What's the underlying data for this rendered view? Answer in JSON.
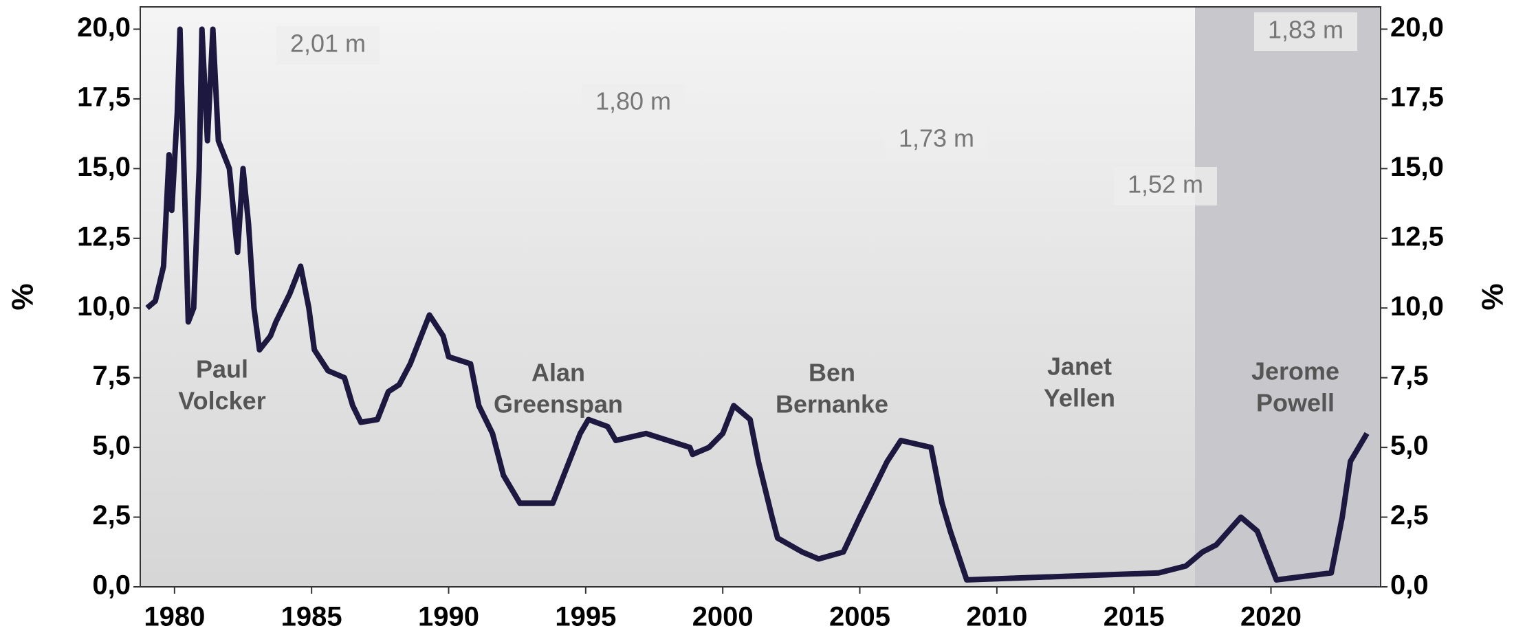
{
  "chart_data": {
    "type": "line",
    "ylabel": "%",
    "y2label": "%",
    "xlim": [
      1978.75,
      2024
    ],
    "ylim": [
      0,
      20.8
    ],
    "y2lim": [
      0,
      20.8
    ],
    "xticks": [
      1980,
      1985,
      1990,
      1995,
      2000,
      2005,
      2010,
      2015,
      2020
    ],
    "yticks": [
      {
        "value": 0,
        "label": "0,0"
      },
      {
        "value": 2.5,
        "label": "2,5"
      },
      {
        "value": 5,
        "label": "5,0"
      },
      {
        "value": 7.5,
        "label": "7,5"
      },
      {
        "value": 10,
        "label": "10,0"
      },
      {
        "value": 12.5,
        "label": "12,5"
      },
      {
        "value": 15,
        "label": "15,0"
      },
      {
        "value": 17.5,
        "label": "17,5"
      },
      {
        "value": 20,
        "label": "20,0"
      }
    ],
    "y2ticks": [
      {
        "value": 0,
        "label": "0,0"
      },
      {
        "value": 2.5,
        "label": "2,5"
      },
      {
        "value": 5,
        "label": "5,0"
      },
      {
        "value": 7.5,
        "label": "7,5"
      },
      {
        "value": 10,
        "label": "10,0"
      },
      {
        "value": 12.5,
        "label": "12,5"
      },
      {
        "value": 15,
        "label": "15,0"
      },
      {
        "value": 17.5,
        "label": "17,5"
      },
      {
        "value": 20,
        "label": "20,0"
      }
    ],
    "series": [
      {
        "color": "#1c1840",
        "x": [
          1979.0,
          1979.3,
          1979.6,
          1979.8,
          1979.9,
          1980.1,
          1980.2,
          1980.4,
          1980.5,
          1980.7,
          1980.9,
          1981.0,
          1981.2,
          1981.4,
          1981.6,
          1981.8,
          1982.0,
          1982.3,
          1982.5,
          1982.7,
          1982.9,
          1983.1,
          1983.5,
          1983.7,
          1984.2,
          1984.6,
          1984.9,
          1985.1,
          1985.6,
          1986.2,
          1986.5,
          1986.8,
          1987.4,
          1987.8,
          1988.2,
          1988.6,
          1989.0,
          1989.3,
          1989.8,
          1990.0,
          1990.8,
          1991.1,
          1991.6,
          1992.0,
          1992.6,
          1993.8,
          1994.4,
          1994.8,
          1995.1,
          1995.8,
          1996.1,
          1997.2,
          1998.8,
          1998.9,
          1999.5,
          2000.0,
          2000.4,
          2001.0,
          2001.3,
          2001.8,
          2002.0,
          2002.9,
          2003.5,
          2004.4,
          2005.0,
          2006.0,
          2006.5,
          2007.6,
          2008.0,
          2008.3,
          2008.9,
          2015.9,
          2016.9,
          2017.5,
          2018.0,
          2018.9,
          2019.5,
          2020.2,
          2022.2,
          2022.6,
          2022.9,
          2023.5
        ],
        "values": [
          10.0,
          10.25,
          11.5,
          15.5,
          13.5,
          17.0,
          20.0,
          13.0,
          9.5,
          10.0,
          15.0,
          20.0,
          16.0,
          20.0,
          16.0,
          15.5,
          15.0,
          12.0,
          15.0,
          13.0,
          10.0,
          8.5,
          9.0,
          9.5,
          10.5,
          11.5,
          10.0,
          8.5,
          7.75,
          7.5,
          6.5,
          5.9,
          6.0,
          7.0,
          7.25,
          8.0,
          9.0,
          9.75,
          9.0,
          8.25,
          8.0,
          6.5,
          5.5,
          4.0,
          3.0,
          3.0,
          4.5,
          5.5,
          6.0,
          5.75,
          5.25,
          5.5,
          5.0,
          4.75,
          5.0,
          5.5,
          6.5,
          6.0,
          4.5,
          2.5,
          1.75,
          1.25,
          1.0,
          1.25,
          2.5,
          4.5,
          5.25,
          5.0,
          3.0,
          2.0,
          0.25,
          0.5,
          0.75,
          1.25,
          1.5,
          2.5,
          2.0,
          0.25,
          0.5,
          2.5,
          4.5,
          5.5
        ]
      }
    ],
    "annotations": [
      {
        "name": [
          "Paul",
          "Volcker"
        ],
        "height": "2,01 m"
      },
      {
        "name": [
          "Alan",
          "Greenspan"
        ],
        "height": "1,80 m"
      },
      {
        "name": [
          "Ben",
          "Bernanke"
        ],
        "height": "1,73 m"
      },
      {
        "name": [
          "Janet",
          "Yellen"
        ],
        "height": "1,52 m"
      },
      {
        "name": [
          "Jerome",
          "Powell"
        ],
        "height": "1,83 m"
      }
    ]
  }
}
